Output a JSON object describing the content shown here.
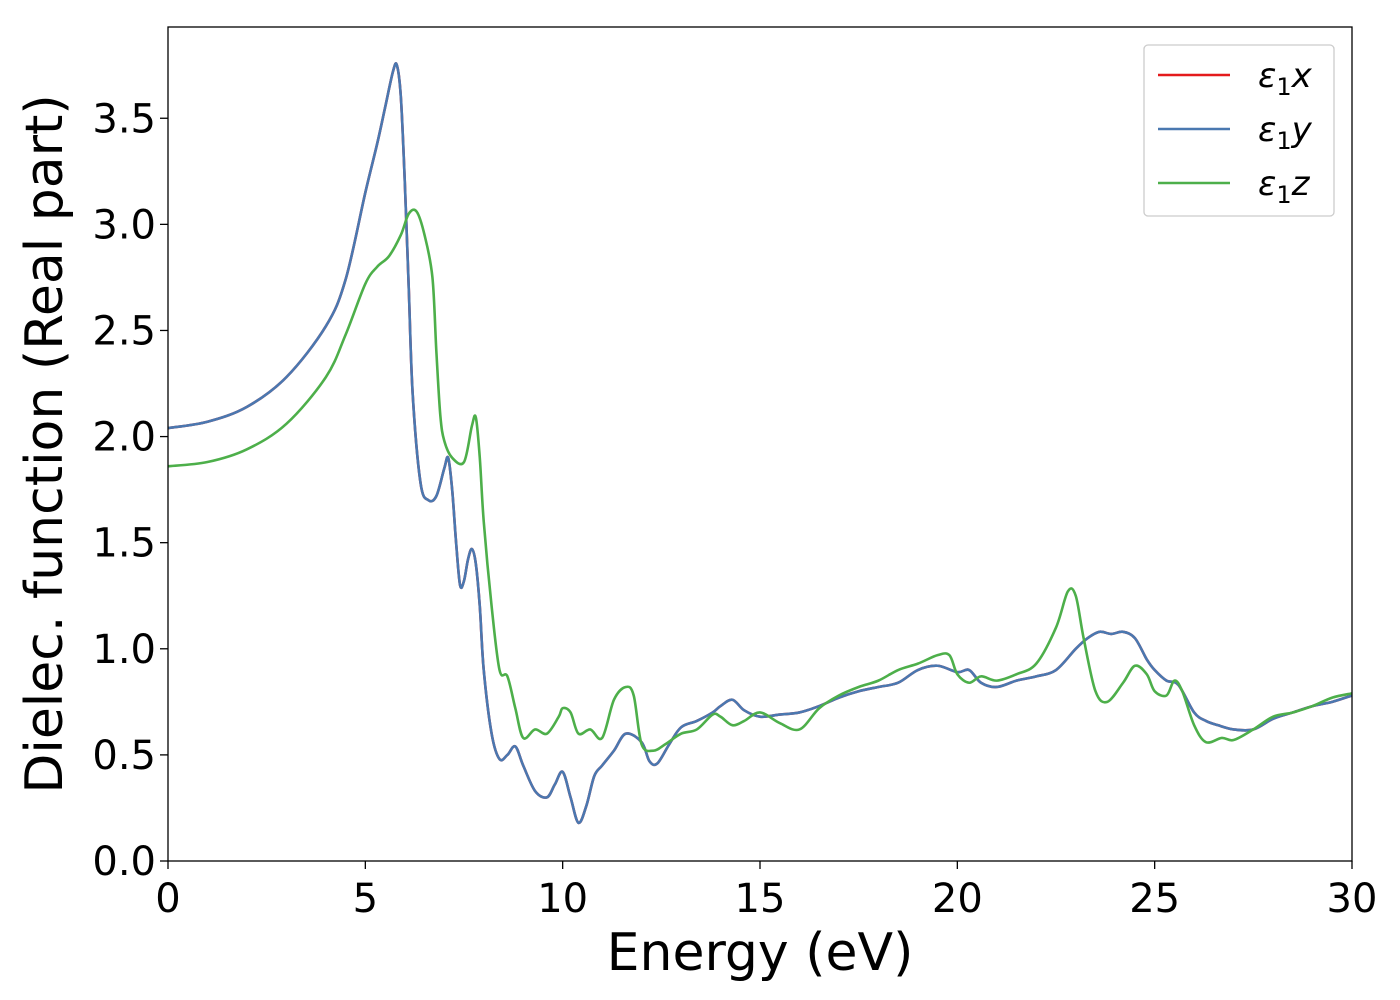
{
  "chart_data": {
    "type": "line",
    "xlabel": "Energy (eV)",
    "ylabel": "Dielec. function (Real part)",
    "xlim": [
      0,
      30
    ],
    "ylim": [
      0,
      3.93
    ],
    "xticks": [
      0,
      5,
      10,
      15,
      20,
      25,
      30
    ],
    "yticks": [
      0.0,
      0.5,
      1.0,
      1.5,
      2.0,
      2.5,
      3.0,
      3.5
    ],
    "xtick_labels": [
      "0",
      "5",
      "10",
      "15",
      "20",
      "25",
      "30"
    ],
    "ytick_labels": [
      "0.0",
      "0.5",
      "1.0",
      "1.5",
      "2.0",
      "2.5",
      "3.0",
      "3.5"
    ],
    "grid": false,
    "legend": {
      "position": "top-right",
      "entries": [
        {
          "sym": "ε",
          "sub": "1",
          "var": "x",
          "color": "#e41a1c"
        },
        {
          "sym": "ε",
          "sub": "1",
          "var": "y",
          "color": "#4a78b0"
        },
        {
          "sym": "ε",
          "sub": "1",
          "var": "z",
          "color": "#4daf4a"
        }
      ]
    },
    "series": [
      {
        "name": "ε1x",
        "color": "#e41a1c",
        "x": [
          0,
          1,
          2,
          3,
          4,
          4.5,
          5,
          5.3,
          5.5,
          5.7,
          5.8,
          5.9,
          6.0,
          6.1,
          6.2,
          6.4,
          6.6,
          6.8,
          7.0,
          7.1,
          7.2,
          7.3,
          7.4,
          7.5,
          7.6,
          7.7,
          7.8,
          7.9,
          8.0,
          8.2,
          8.4,
          8.6,
          8.8,
          9.0,
          9.3,
          9.6,
          9.8,
          10.0,
          10.2,
          10.4,
          10.6,
          10.8,
          11.0,
          11.3,
          11.6,
          12.0,
          12.2,
          12.4,
          12.7,
          13.0,
          13.4,
          13.8,
          14.0,
          14.3,
          14.6,
          15.0,
          15.5,
          16.0,
          16.5,
          17.0,
          17.5,
          18.0,
          18.5,
          19.0,
          19.5,
          20.0,
          20.3,
          20.6,
          21.0,
          21.5,
          22.0,
          22.5,
          23.0,
          23.3,
          23.6,
          23.9,
          24.2,
          24.5,
          24.8,
          25.0,
          25.3,
          25.6,
          26.0,
          26.3,
          26.6,
          27.0,
          27.5,
          28.0,
          28.5,
          29.0,
          29.5,
          30.0
        ],
        "y": [
          2.04,
          2.07,
          2.14,
          2.28,
          2.52,
          2.74,
          3.15,
          3.38,
          3.55,
          3.72,
          3.75,
          3.6,
          3.2,
          2.7,
          2.2,
          1.78,
          1.7,
          1.72,
          1.85,
          1.9,
          1.75,
          1.5,
          1.3,
          1.32,
          1.42,
          1.47,
          1.4,
          1.2,
          0.9,
          0.6,
          0.48,
          0.5,
          0.54,
          0.45,
          0.33,
          0.3,
          0.36,
          0.42,
          0.3,
          0.18,
          0.26,
          0.4,
          0.45,
          0.52,
          0.6,
          0.56,
          0.47,
          0.46,
          0.55,
          0.63,
          0.66,
          0.7,
          0.73,
          0.76,
          0.71,
          0.68,
          0.69,
          0.7,
          0.73,
          0.77,
          0.8,
          0.82,
          0.84,
          0.9,
          0.92,
          0.89,
          0.9,
          0.84,
          0.82,
          0.85,
          0.87,
          0.9,
          1.0,
          1.05,
          1.08,
          1.07,
          1.08,
          1.05,
          0.95,
          0.9,
          0.85,
          0.83,
          0.7,
          0.66,
          0.64,
          0.62,
          0.62,
          0.67,
          0.7,
          0.73,
          0.75,
          0.78
        ]
      },
      {
        "name": "ε1y",
        "color": "#4a78b0",
        "x": [
          0,
          1,
          2,
          3,
          4,
          4.5,
          5,
          5.3,
          5.5,
          5.7,
          5.8,
          5.9,
          6.0,
          6.1,
          6.2,
          6.4,
          6.6,
          6.8,
          7.0,
          7.1,
          7.2,
          7.3,
          7.4,
          7.5,
          7.6,
          7.7,
          7.8,
          7.9,
          8.0,
          8.2,
          8.4,
          8.6,
          8.8,
          9.0,
          9.3,
          9.6,
          9.8,
          10.0,
          10.2,
          10.4,
          10.6,
          10.8,
          11.0,
          11.3,
          11.6,
          12.0,
          12.2,
          12.4,
          12.7,
          13.0,
          13.4,
          13.8,
          14.0,
          14.3,
          14.6,
          15.0,
          15.5,
          16.0,
          16.5,
          17.0,
          17.5,
          18.0,
          18.5,
          19.0,
          19.5,
          20.0,
          20.3,
          20.6,
          21.0,
          21.5,
          22.0,
          22.5,
          23.0,
          23.3,
          23.6,
          23.9,
          24.2,
          24.5,
          24.8,
          25.0,
          25.3,
          25.6,
          26.0,
          26.3,
          26.6,
          27.0,
          27.5,
          28.0,
          28.5,
          29.0,
          29.5,
          30.0
        ],
        "y": [
          2.04,
          2.07,
          2.14,
          2.28,
          2.52,
          2.74,
          3.15,
          3.38,
          3.55,
          3.72,
          3.75,
          3.6,
          3.2,
          2.7,
          2.2,
          1.78,
          1.7,
          1.72,
          1.85,
          1.9,
          1.75,
          1.5,
          1.3,
          1.32,
          1.42,
          1.47,
          1.4,
          1.2,
          0.9,
          0.6,
          0.48,
          0.5,
          0.54,
          0.45,
          0.33,
          0.3,
          0.36,
          0.42,
          0.3,
          0.18,
          0.26,
          0.4,
          0.45,
          0.52,
          0.6,
          0.56,
          0.47,
          0.46,
          0.55,
          0.63,
          0.66,
          0.7,
          0.73,
          0.76,
          0.71,
          0.68,
          0.69,
          0.7,
          0.73,
          0.77,
          0.8,
          0.82,
          0.84,
          0.9,
          0.92,
          0.89,
          0.9,
          0.84,
          0.82,
          0.85,
          0.87,
          0.9,
          1.0,
          1.05,
          1.08,
          1.07,
          1.08,
          1.05,
          0.95,
          0.9,
          0.85,
          0.83,
          0.7,
          0.66,
          0.64,
          0.62,
          0.62,
          0.67,
          0.7,
          0.73,
          0.75,
          0.78
        ]
      },
      {
        "name": "ε1z",
        "color": "#4daf4a",
        "x": [
          0,
          1,
          2,
          3,
          4,
          4.5,
          5,
          5.3,
          5.6,
          5.9,
          6.1,
          6.3,
          6.5,
          6.7,
          6.8,
          6.9,
          7.0,
          7.2,
          7.5,
          7.7,
          7.8,
          7.9,
          8.0,
          8.2,
          8.4,
          8.6,
          8.8,
          9.0,
          9.3,
          9.6,
          9.9,
          10.0,
          10.2,
          10.4,
          10.7,
          11.0,
          11.3,
          11.6,
          11.8,
          12.0,
          12.3,
          12.6,
          13.0,
          13.4,
          13.8,
          14.0,
          14.3,
          14.6,
          15.0,
          15.5,
          16.0,
          16.5,
          17.0,
          17.5,
          18.0,
          18.5,
          19.0,
          19.5,
          19.8,
          20.0,
          20.3,
          20.6,
          21.0,
          21.5,
          22.0,
          22.5,
          22.8,
          23.0,
          23.2,
          23.5,
          23.8,
          24.2,
          24.5,
          24.8,
          25.0,
          25.3,
          25.5,
          25.7,
          26.0,
          26.3,
          26.7,
          27.0,
          27.5,
          28.0,
          28.5,
          29.0,
          29.5,
          30.0
        ],
        "y": [
          1.86,
          1.88,
          1.94,
          2.06,
          2.28,
          2.48,
          2.72,
          2.8,
          2.85,
          2.95,
          3.05,
          3.06,
          2.95,
          2.75,
          2.4,
          2.1,
          1.98,
          1.9,
          1.88,
          2.05,
          2.09,
          1.9,
          1.6,
          1.2,
          0.9,
          0.87,
          0.72,
          0.58,
          0.62,
          0.6,
          0.68,
          0.72,
          0.7,
          0.6,
          0.62,
          0.58,
          0.76,
          0.82,
          0.78,
          0.55,
          0.52,
          0.55,
          0.6,
          0.62,
          0.69,
          0.68,
          0.64,
          0.66,
          0.7,
          0.65,
          0.62,
          0.72,
          0.78,
          0.82,
          0.85,
          0.9,
          0.93,
          0.97,
          0.97,
          0.88,
          0.84,
          0.87,
          0.85,
          0.88,
          0.93,
          1.1,
          1.27,
          1.25,
          1.05,
          0.8,
          0.75,
          0.84,
          0.92,
          0.88,
          0.8,
          0.78,
          0.85,
          0.8,
          0.64,
          0.56,
          0.58,
          0.57,
          0.62,
          0.68,
          0.7,
          0.73,
          0.77,
          0.79
        ]
      }
    ]
  }
}
